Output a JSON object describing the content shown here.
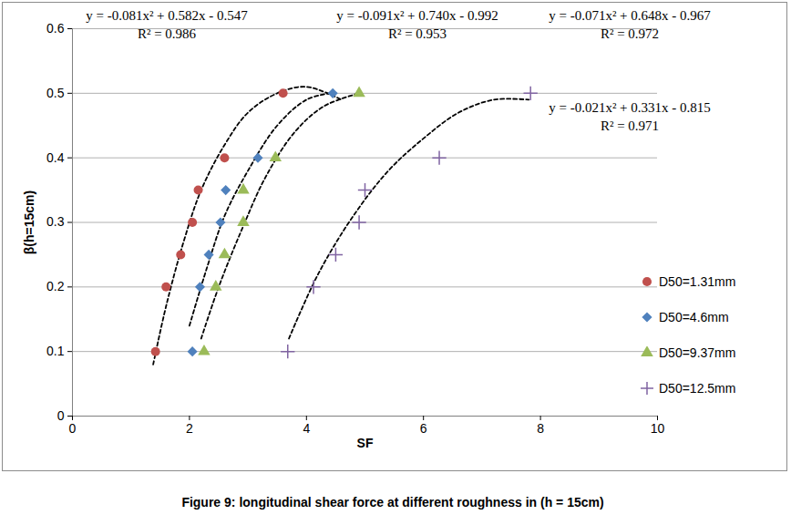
{
  "chart_data": {
    "type": "scatter",
    "caption": "Figure 9: longitudinal shear force at different roughness in (h = 15cm)",
    "x_label": "SF",
    "y_label": "β(h=15cm)",
    "xlim": [
      0,
      10
    ],
    "xticks": [
      0,
      2,
      4,
      6,
      8,
      10
    ],
    "ylim": [
      0,
      0.6
    ],
    "yticks": [
      0,
      0.1,
      0.2,
      0.3,
      0.4,
      0.5,
      0.6
    ],
    "grid": "y",
    "legend": "right",
    "annotations": [
      [
        "y = -0.081x² + 0.582x - 0.547",
        "R² = 0.986"
      ],
      [
        "y = -0.091x² + 0.740x - 0.992",
        "R² = 0.953"
      ],
      [
        "y = -0.071x² + 0.648x - 0.967",
        "R² = 0.972"
      ],
      [
        "y = -0.021x² + 0.331x - 0.815",
        "R² = 0.971"
      ]
    ],
    "series": [
      {
        "name": "D50=1.31mm",
        "color": "#c0504d",
        "marker": "circle",
        "x": [
          1.42,
          1.6,
          1.85,
          2.05,
          2.15,
          2.6,
          3.6
        ],
        "y": [
          0.1,
          0.2,
          0.25,
          0.3,
          0.35,
          0.4,
          0.5
        ],
        "trendline": {
          "color": "#000000",
          "line_style": "dashed",
          "x": [
            1.38,
            1.6,
            1.9,
            2.2,
            2.6,
            3.0,
            3.5,
            4.0,
            4.6
          ],
          "y": [
            0.08,
            0.17,
            0.27,
            0.35,
            0.42,
            0.47,
            0.5,
            0.51,
            0.49
          ]
        }
      },
      {
        "name": "D50=4.6mm",
        "color": "#4f81bd",
        "marker": "diamond",
        "x": [
          2.05,
          2.18,
          2.33,
          2.53,
          2.62,
          3.17,
          4.45
        ],
        "y": [
          0.1,
          0.2,
          0.25,
          0.3,
          0.35,
          0.4,
          0.5
        ],
        "trendline": {
          "color": "#000000",
          "line_style": "dashed",
          "x": [
            2.0,
            2.3,
            2.6,
            3.0,
            3.5,
            4.0,
            4.4
          ],
          "y": [
            0.14,
            0.23,
            0.31,
            0.38,
            0.45,
            0.49,
            0.5
          ]
        }
      },
      {
        "name": "D50=9.37mm",
        "color": "#9bbb59",
        "marker": "triangle",
        "x": [
          2.25,
          2.45,
          2.6,
          2.92,
          2.92,
          3.47,
          4.9
        ],
        "y": [
          0.1,
          0.2,
          0.25,
          0.3,
          0.35,
          0.4,
          0.5
        ],
        "trendline": {
          "color": "#000000",
          "line_style": "dashed",
          "x": [
            2.2,
            2.5,
            2.9,
            3.3,
            3.8,
            4.3,
            4.9
          ],
          "y": [
            0.12,
            0.2,
            0.29,
            0.37,
            0.44,
            0.48,
            0.5
          ]
        }
      },
      {
        "name": "D50=12.5mm",
        "color": "#8064a2",
        "marker": "plus",
        "x": [
          3.68,
          4.12,
          4.5,
          4.9,
          5.0,
          6.27,
          7.83
        ],
        "y": [
          0.1,
          0.2,
          0.25,
          0.3,
          0.35,
          0.4,
          0.5
        ],
        "trendline": {
          "color": "#000000",
          "line_style": "dashed",
          "x": [
            3.7,
            4.2,
            4.8,
            5.4,
            6.0,
            6.6,
            7.2,
            7.8
          ],
          "y": [
            0.12,
            0.22,
            0.31,
            0.38,
            0.43,
            0.47,
            0.49,
            0.49
          ]
        }
      }
    ]
  }
}
